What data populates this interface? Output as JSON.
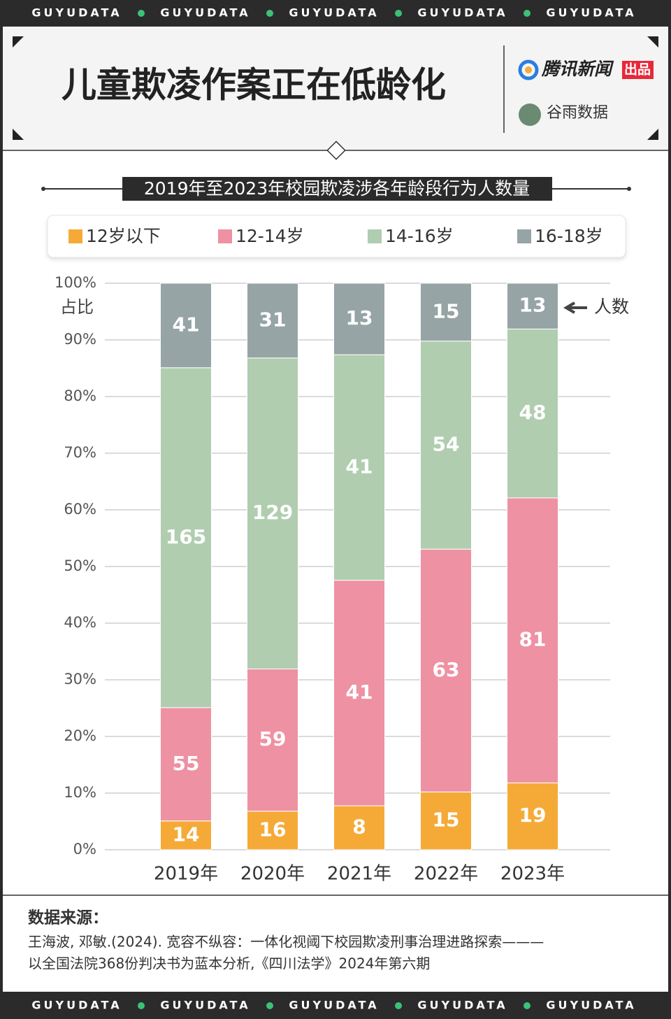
{
  "banner_text": "GUYUDATA",
  "header": {
    "title": "儿童欺凌作案正在低龄化",
    "brand": "腾讯新闻",
    "brand_tag": "出品",
    "partner": "谷雨数据"
  },
  "chart_data": {
    "type": "bar",
    "stacking": "percent",
    "title": "2019年至2023年校园欺凌涉各年龄段行为人数量",
    "y_label": "占比",
    "annotation": "人数",
    "categories": [
      "2019年",
      "2020年",
      "2021年",
      "2022年",
      "2023年"
    ],
    "series": [
      {
        "name": "12岁以下",
        "color": "#f5aa38",
        "values": [
          14,
          16,
          8,
          15,
          19
        ]
      },
      {
        "name": "12-14岁",
        "color": "#ee91a3",
        "values": [
          55,
          59,
          41,
          63,
          81
        ]
      },
      {
        "name": "14-16岁",
        "color": "#b0cdb0",
        "values": [
          165,
          129,
          41,
          54,
          48
        ]
      },
      {
        "name": "16-18岁",
        "color": "#96a4a6",
        "values": [
          41,
          31,
          13,
          15,
          13
        ]
      }
    ],
    "ylim": [
      0,
      100
    ],
    "yticks": [
      {
        "value": 0,
        "label": "0%"
      },
      {
        "value": 10,
        "label": "10%"
      },
      {
        "value": 20,
        "label": "20%"
      },
      {
        "value": 30,
        "label": "30%"
      },
      {
        "value": 40,
        "label": "40%"
      },
      {
        "value": 50,
        "label": "50%"
      },
      {
        "value": 60,
        "label": "60%"
      },
      {
        "value": 70,
        "label": "70%"
      },
      {
        "value": 80,
        "label": "80%"
      },
      {
        "value": 90,
        "label": "90%"
      },
      {
        "value": 100,
        "label": "100%"
      }
    ],
    "grid": true,
    "legend": "top"
  },
  "source": {
    "title": "数据来源：",
    "lines": [
      "王海波, 邓敏.(2024). 宽容不纵容：一体化视阈下校园欺凌刑事治理进路探索———",
      "以全国法院368份判决书为蓝本分析,《四川法学》2024年第六期"
    ]
  }
}
